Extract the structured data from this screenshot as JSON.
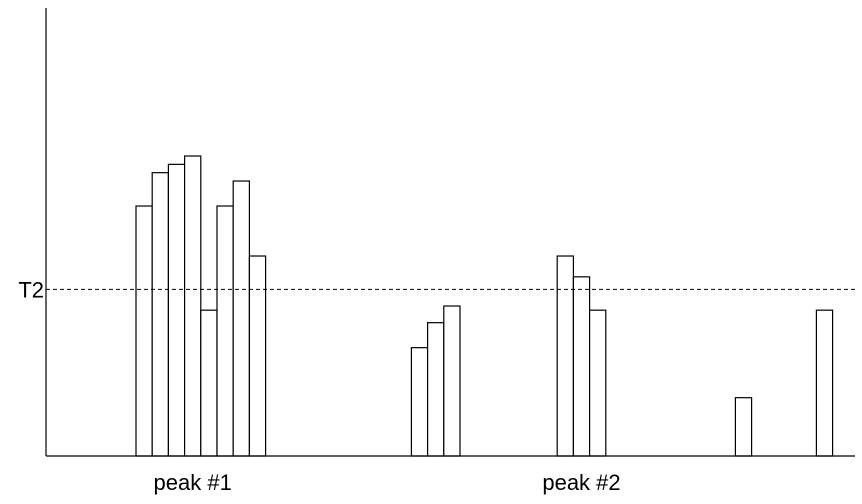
{
  "chart_data": {
    "type": "bar",
    "title": "",
    "xlabel": "",
    "ylabel": "",
    "grid": false,
    "legend": "none",
    "ylim": [
      0,
      100
    ],
    "x_range": [
      0,
      50
    ],
    "bars": [
      {
        "x": 5,
        "value": 60
      },
      {
        "x": 6,
        "value": 68
      },
      {
        "x": 7,
        "value": 70
      },
      {
        "x": 8,
        "value": 72
      },
      {
        "x": 9,
        "value": 35
      },
      {
        "x": 10,
        "value": 60
      },
      {
        "x": 11,
        "value": 66
      },
      {
        "x": 12,
        "value": 48
      },
      {
        "x": 22,
        "value": 26
      },
      {
        "x": 23,
        "value": 32
      },
      {
        "x": 24,
        "value": 36
      },
      {
        "x": 31,
        "value": 48
      },
      {
        "x": 32,
        "value": 43
      },
      {
        "x": 33,
        "value": 35
      },
      {
        "x": 42,
        "value": 14
      },
      {
        "x": 47,
        "value": 35
      }
    ],
    "threshold": {
      "label": "T2",
      "value": 40
    },
    "annotations": [
      {
        "text": "peak #1",
        "x": 8.5
      },
      {
        "text": "peak #2",
        "x": 32.5
      }
    ],
    "colors": {
      "bar_fill": "#ffffff",
      "bar_stroke": "#000000",
      "line": "#000000"
    }
  }
}
